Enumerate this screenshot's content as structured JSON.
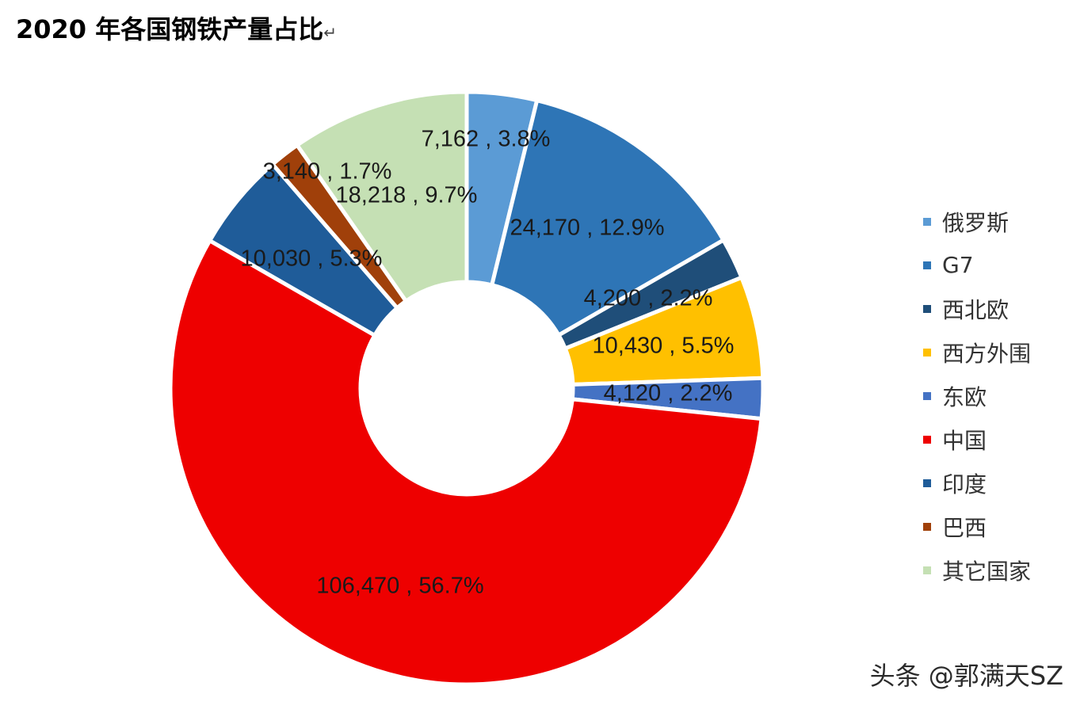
{
  "title": "2020 年各国钢铁产量占比",
  "title_mark": "↵",
  "watermark": "头条 @郭满天SZ",
  "chart_data": {
    "type": "pie",
    "variant": "donut",
    "title": "2020 年各国钢铁产量占比",
    "legend_position": "right",
    "slices": [
      {
        "name": "俄罗斯",
        "value": 7162,
        "percent": 3.8,
        "label": "7,162 , 3.8%",
        "color": "#5b9bd5"
      },
      {
        "name": "G7",
        "value": 24170,
        "percent": 12.9,
        "label": "24,170 , 12.9%",
        "color": "#2e75b6"
      },
      {
        "name": "西北欧",
        "value": 4200,
        "percent": 2.2,
        "label": "4,200 , 2.2%",
        "color": "#1f4e79"
      },
      {
        "name": "西方外围",
        "value": 10430,
        "percent": 5.5,
        "label": "10,430 , 5.5%",
        "color": "#ffc000"
      },
      {
        "name": "东欧",
        "value": 4120,
        "percent": 2.2,
        "label": "4,120 , 2.2%",
        "color": "#4472c4"
      },
      {
        "name": "中国",
        "value": 106470,
        "percent": 56.7,
        "label": "106,470 , 56.7%",
        "color": "#ee0000"
      },
      {
        "name": "印度",
        "value": 10030,
        "percent": 5.3,
        "label": "10,030 , 5.3%",
        "color": "#1f5c99"
      },
      {
        "name": "巴西",
        "value": 3140,
        "percent": 1.7,
        "label": "3,140 , 1.7%",
        "color": "#a0400a"
      },
      {
        "name": "其它国家",
        "value": 18218,
        "percent": 9.7,
        "label": "18,218 , 9.7%",
        "color": "#c5e0b4"
      }
    ]
  }
}
